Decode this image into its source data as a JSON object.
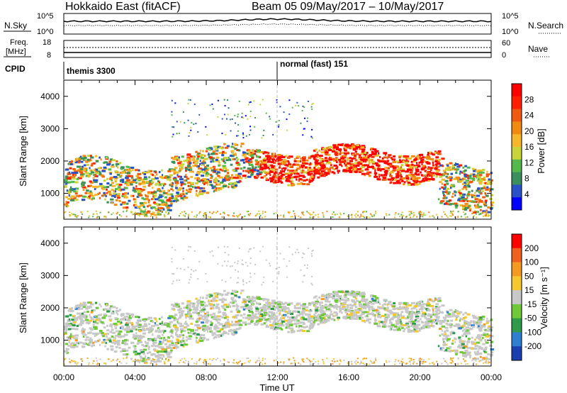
{
  "header": {
    "radar": "Hokkaido East (fitACF)",
    "beam_date": "Beam 05  09/May/2017 – 10/May/2017"
  },
  "top_panels": {
    "nsky_label": "N.Sky",
    "nsky_ticks": [
      "10^5",
      "10^0"
    ],
    "nsearch_label": "N.Search",
    "nsearch_ticks": [
      "10^5",
      "10^0"
    ],
    "freq_label": "Freq.",
    "freq_unit": "[MHz]",
    "freq_ticks": [
      "18",
      "8"
    ],
    "nave_label": "Nave",
    "nave_ticks": [
      "60",
      "0"
    ],
    "cpid_label": "CPID",
    "cpid_segments": [
      {
        "start_hour": 0,
        "label": "themis 3300"
      },
      {
        "start_hour": 12,
        "label": "normal (fast) 151"
      }
    ]
  },
  "chart_data": [
    {
      "type": "heatmap",
      "name": "power-panel",
      "ylabel": "Slant Range [km]",
      "ylim": [
        200,
        4500
      ],
      "yticks": [
        1000,
        2000,
        3000,
        4000
      ],
      "xlim_hours": [
        0,
        24
      ],
      "colorbar": {
        "label": "Power [dB]",
        "ticks": [
          "4",
          "8",
          "12",
          "16",
          "20",
          "24",
          "28"
        ],
        "colors": [
          "#0000ff",
          "#2a52c8",
          "#3a8f5a",
          "#55b84a",
          "#c8d43a",
          "#f5b82a",
          "#f08a10",
          "#f05a10",
          "#ff2000",
          "#ff0000"
        ]
      }
    },
    {
      "type": "heatmap",
      "name": "velocity-panel",
      "ylabel": "Slant Range [km]",
      "ylim": [
        200,
        4500
      ],
      "yticks": [
        1000,
        2000,
        3000,
        4000
      ],
      "xlim_hours": [
        0,
        24
      ],
      "colorbar": {
        "label": "Velocity [m s⁻¹]",
        "ticks": [
          "200",
          "100",
          "50",
          "15",
          "-15",
          "-50",
          "-100",
          "-200"
        ],
        "colors": [
          "#1a3fb0",
          "#2f7fd0",
          "#2e9a4a",
          "#6ec83a",
          "#c8c8c8",
          "#f5c830",
          "#f59a20",
          "#f06020",
          "#ff0000"
        ]
      }
    }
  ],
  "xaxis": {
    "ticks": [
      "00:00",
      "04:00",
      "08:00",
      "12:00",
      "16:00",
      "20:00",
      "00:00"
    ],
    "label": "Time UT"
  }
}
